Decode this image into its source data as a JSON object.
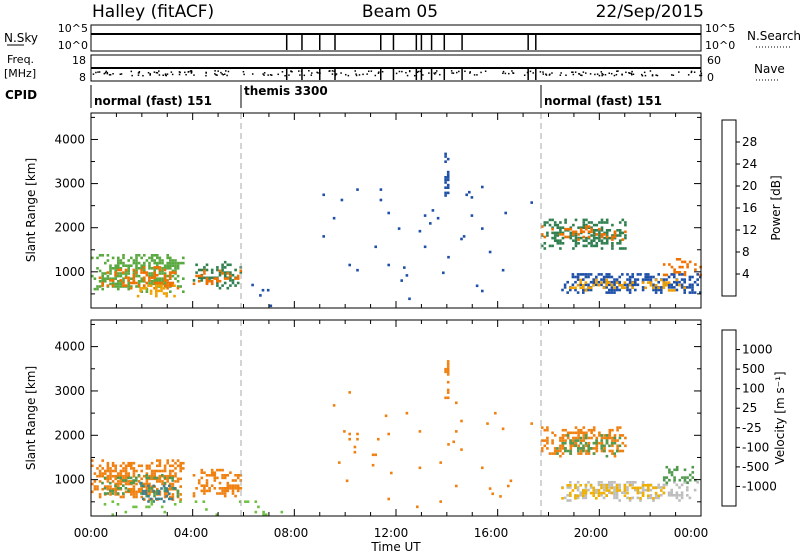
{
  "header": {
    "radar": "Halley (fitACF)",
    "beam": "Beam 05",
    "date": "22/Sep/2015"
  },
  "panels": {
    "nsky": {
      "label": "N.Sky",
      "left_ticks": [
        "10^5",
        "10^0"
      ],
      "right_ticks": [
        "10^5",
        "10^0"
      ],
      "right_label": "N.Search"
    },
    "freq": {
      "label_line1": "Freq.",
      "label_line2": "[MHz]",
      "left_ticks": [
        "18",
        "8"
      ],
      "right_ticks": [
        "60",
        "0"
      ],
      "right_label": "Nave"
    },
    "cpid": {
      "label": "CPID",
      "segments": [
        {
          "label": "normal (fast) 151",
          "start_hour": 0,
          "end_hour": 6
        },
        {
          "label": "themis 3300",
          "start_hour": 6,
          "end_hour": 18
        },
        {
          "label": "normal (fast) 151",
          "start_hour": 18,
          "end_hour": 24
        }
      ]
    }
  },
  "axes": {
    "x_ticks": [
      "00:00",
      "04:00",
      "08:00",
      "12:00",
      "16:00",
      "20:00",
      "00:00"
    ],
    "xlabel": "Time UT",
    "ylabel": "Slant Range [km]",
    "y_ticks": [
      "1000",
      "2000",
      "3000",
      "4000"
    ]
  },
  "colorbars": {
    "power": {
      "label": "Power [dB]",
      "ticks": [
        "28",
        "24",
        "20",
        "16",
        "12",
        "8",
        "4"
      ],
      "colors": [
        "#1f1fe0",
        "#1f50a8",
        "#2f7f4f",
        "#59a840",
        "#c8d020",
        "#f0a000",
        "#f07000",
        "#e02000"
      ]
    },
    "velocity": {
      "label": "Velocity [m s⁻¹]",
      "ticks": [
        "1000",
        "500",
        "100",
        "25",
        "-25",
        "-100",
        "-500",
        "-1000"
      ],
      "colors": [
        "#2a4fb0",
        "#3f7f8f",
        "#4f9a4f",
        "#6dc040",
        "#bebebe",
        "#f0b000",
        "#f08010",
        "#e84010",
        "#e00000"
      ]
    }
  },
  "chart_data": [
    {
      "type": "heatmap",
      "title": "",
      "xlabel": "Time UT",
      "ylabel": "Slant Range [km]",
      "xlim_hours": [
        0,
        24
      ],
      "ylim_km": [
        180,
        4600
      ],
      "colorbar": "Power [dB]",
      "blobs": [
        {
          "t0": 0.0,
          "t1": 3.6,
          "r0": 520,
          "r1": 1400,
          "color": "#59a840",
          "density": 0.55
        },
        {
          "t0": 0.2,
          "t1": 3.5,
          "r0": 600,
          "r1": 1100,
          "color": "#f07000",
          "density": 0.35
        },
        {
          "t0": 1.8,
          "t1": 3.3,
          "r0": 420,
          "r1": 700,
          "color": "#f0a000",
          "density": 0.4
        },
        {
          "t0": 4.0,
          "t1": 5.9,
          "r0": 600,
          "r1": 1200,
          "color": "#2f7f4f",
          "density": 0.45
        },
        {
          "t0": 4.0,
          "t1": 5.9,
          "r0": 700,
          "r1": 1000,
          "color": "#f07000",
          "density": 0.3
        },
        {
          "t0": 13.9,
          "t1": 14.1,
          "r0": 2700,
          "r1": 3700,
          "color": "#1f50a8",
          "density": 0.5
        },
        {
          "t0": 17.7,
          "t1": 21.0,
          "r0": 1500,
          "r1": 2200,
          "color": "#2f7f4f",
          "density": 0.45
        },
        {
          "t0": 17.7,
          "t1": 21.0,
          "r0": 1700,
          "r1": 2000,
          "color": "#f07000",
          "density": 0.3
        },
        {
          "t0": 18.5,
          "t1": 24.0,
          "r0": 500,
          "r1": 950,
          "color": "#1f50a8",
          "density": 0.55
        },
        {
          "t0": 18.5,
          "t1": 23.5,
          "r0": 550,
          "r1": 800,
          "color": "#f0a000",
          "density": 0.35
        },
        {
          "t0": 22.5,
          "t1": 24.0,
          "r0": 900,
          "r1": 1300,
          "color": "#f07000",
          "density": 0.35
        },
        {
          "t0": 6.0,
          "t1": 7.5,
          "r0": 200,
          "r1": 700,
          "color": "#1f50a8",
          "density": 0.05
        },
        {
          "t0": 9.0,
          "t1": 17.5,
          "r0": 300,
          "r1": 3000,
          "color": "#1f50a8",
          "density": 0.01
        }
      ]
    },
    {
      "type": "heatmap",
      "title": "",
      "xlabel": "Time UT",
      "ylabel": "Slant Range [km]",
      "xlim_hours": [
        0,
        24
      ],
      "ylim_km": [
        180,
        4600
      ],
      "colorbar": "Velocity [m s⁻¹]",
      "blobs": [
        {
          "t0": 0.0,
          "t1": 3.6,
          "r0": 520,
          "r1": 1400,
          "color": "#f08010",
          "density": 0.55
        },
        {
          "t0": 0.3,
          "t1": 3.4,
          "r0": 600,
          "r1": 1100,
          "color": "#4f9a4f",
          "density": 0.35
        },
        {
          "t0": 1.8,
          "t1": 3.3,
          "r0": 420,
          "r1": 900,
          "color": "#3f7f8f",
          "density": 0.35
        },
        {
          "t0": 4.0,
          "t1": 5.9,
          "r0": 600,
          "r1": 1200,
          "color": "#f08010",
          "density": 0.5
        },
        {
          "t0": 0.5,
          "t1": 7.5,
          "r0": 180,
          "r1": 500,
          "color": "#6dc040",
          "density": 0.1
        },
        {
          "t0": 13.9,
          "t1": 14.1,
          "r0": 2700,
          "r1": 3700,
          "color": "#f08010",
          "density": 0.5
        },
        {
          "t0": 17.7,
          "t1": 21.0,
          "r0": 1500,
          "r1": 2200,
          "color": "#f08010",
          "density": 0.45
        },
        {
          "t0": 18.2,
          "t1": 21.0,
          "r0": 1500,
          "r1": 2000,
          "color": "#4f9a4f",
          "density": 0.25
        },
        {
          "t0": 18.5,
          "t1": 24.0,
          "r0": 500,
          "r1": 950,
          "color": "#bebebe",
          "density": 0.45
        },
        {
          "t0": 18.5,
          "t1": 22.5,
          "r0": 550,
          "r1": 900,
          "color": "#f0b000",
          "density": 0.35
        },
        {
          "t0": 22.5,
          "t1": 24.0,
          "r0": 900,
          "r1": 1300,
          "color": "#4f9a4f",
          "density": 0.35
        },
        {
          "t0": 9.0,
          "t1": 17.5,
          "r0": 300,
          "r1": 3000,
          "color": "#f08010",
          "density": 0.01
        }
      ]
    }
  ]
}
